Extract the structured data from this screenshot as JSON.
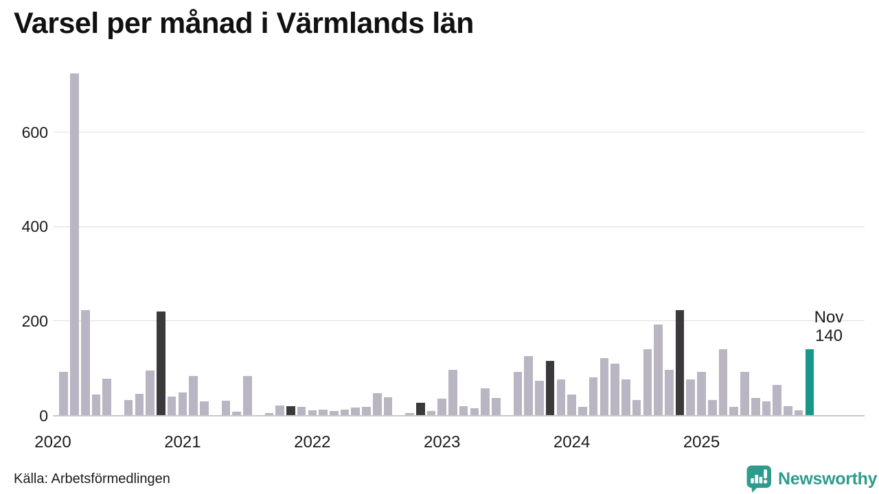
{
  "page": {
    "title": "Varsel per månad i Värmlands län"
  },
  "annotation": {
    "month": "Nov",
    "value": "140"
  },
  "footer": {
    "source_label": "Källa: Arbetsförmedlingen",
    "brand": {
      "name": "Newsworthy",
      "icon": "newsworthy-speech-bubble-bar-chart-icon"
    }
  },
  "colors": {
    "bar_default": "#b9b5c2",
    "bar_november_dark": "#3b393c",
    "bar_current": "#17988a",
    "gridline": "#dddddd",
    "axis_line": "#c8c8c8",
    "text": "#1a1a1a",
    "brand_teal": "#2d9c8d"
  },
  "chart_data": {
    "type": "bar",
    "title": "Varsel per månad i Värmlands län",
    "xlabel": "",
    "ylabel": "",
    "y_ticks": [
      0,
      200,
      400,
      600
    ],
    "ylim": [
      0,
      750
    ],
    "grid": "horizontal",
    "x_tick_labels": [
      "2020",
      "2021",
      "2022",
      "2023",
      "2024",
      "2025"
    ],
    "start_month": "2020-01",
    "values": {
      "2020": [
        0,
        93,
        725,
        223,
        45,
        78,
        0,
        33,
        46,
        95,
        220,
        40
      ],
      "2021": [
        48,
        84,
        30,
        0,
        31,
        8,
        84,
        0,
        5,
        21,
        19,
        18
      ],
      "2022": [
        11,
        12,
        10,
        13,
        16,
        18,
        47,
        39,
        0,
        5,
        27,
        9
      ],
      "2023": [
        35,
        97,
        20,
        15,
        58,
        37,
        0,
        93,
        126,
        74,
        116,
        76
      ],
      "2024": [
        44,
        18,
        80,
        121,
        110,
        76,
        33,
        140,
        193,
        97,
        223,
        76
      ],
      "2025": [
        93,
        33,
        140,
        18,
        93,
        37,
        30,
        64,
        20,
        11,
        140
      ]
    },
    "dark_bars": [
      "2020-11",
      "2021-11",
      "2022-11",
      "2023-11",
      "2024-11"
    ],
    "current_bar": {
      "month": "2025-11",
      "value": 140,
      "label": "Nov 140"
    }
  }
}
